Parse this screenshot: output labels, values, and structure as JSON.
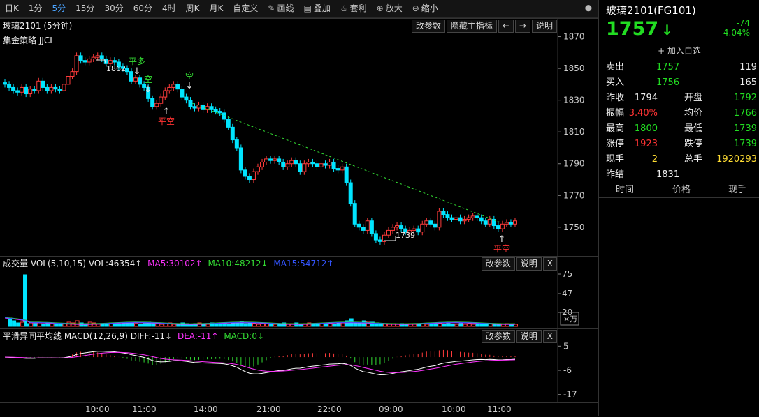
{
  "toolbar": {
    "items": [
      {
        "label": "日K"
      },
      {
        "label": "1分"
      },
      {
        "label": "5分"
      },
      {
        "label": "15分"
      },
      {
        "label": "30分"
      },
      {
        "label": "60分"
      },
      {
        "label": "4时"
      },
      {
        "label": "周K"
      },
      {
        "label": "月K"
      },
      {
        "label": "自定义"
      }
    ],
    "tools": [
      {
        "label": "画线",
        "icon": "pencil-icon"
      },
      {
        "label": "叠加",
        "icon": "overlay-icon"
      },
      {
        "label": "套利",
        "icon": "money-bag-icon"
      },
      {
        "label": "放大",
        "icon": "zoom-in-icon"
      },
      {
        "label": "缩小",
        "icon": "zoom-out-icon"
      }
    ]
  },
  "main": {
    "title": "玻璃2101 (5分钟)",
    "strategy": "集金策略 JJCL",
    "buttons": {
      "params": "改参数",
      "hide": "隐藏主指标",
      "left": "←",
      "right": "→",
      "help": "说明"
    },
    "y_ticks": [
      "1870",
      "1850",
      "1830",
      "1810",
      "1790",
      "1770",
      "1750"
    ],
    "hi_label": "1862",
    "lo_label": "1739",
    "signals": {
      "ping_duo": "平多",
      "kong1": "空",
      "kong2": "空",
      "ping_kong1": "平空",
      "ping_kong2": "平空"
    }
  },
  "volume": {
    "label": "成交量 VOL(5,10,15) VOL:46354↑",
    "ma5": "MA5:30102↑",
    "ma10": "MA10:48212↓",
    "ma15": "MA15:54712↑",
    "buttons": {
      "params": "改参数",
      "help": "说明",
      "close": "X"
    },
    "y_ticks": [
      "75",
      "47",
      "20"
    ],
    "unit": "×万"
  },
  "macd": {
    "label": "平滑异同平均线 MACD(12,26,9) DIFF:-11↓",
    "dea": "DEA:-11↑",
    "macd": "MACD:0↓",
    "buttons": {
      "params": "改参数",
      "help": "说明",
      "close": "X"
    },
    "y_ticks": [
      "5",
      "-6",
      "-17"
    ]
  },
  "x_ticks": [
    "10:00",
    "11:00",
    "14:00",
    "21:00",
    "22:00",
    "09:00",
    "10:00",
    "11:00"
  ],
  "quote": {
    "title": "玻璃2101(FG101)",
    "price": "1757",
    "arrow": "↓",
    "change": "-74",
    "change_pct": "-4.04%",
    "add": "+ 加入自选",
    "sell": {
      "label": "卖出",
      "price": "1757",
      "vol": "119"
    },
    "buy": {
      "label": "买入",
      "price": "1756",
      "vol": "165"
    },
    "rows": [
      {
        "l1": "昨收",
        "v1": "1794",
        "l2": "开盘",
        "v2": "1792"
      },
      {
        "l1": "振幅",
        "v1": "3.40%",
        "l2": "均价",
        "v2": "1766"
      },
      {
        "l1": "最高",
        "v1": "1800",
        "l2": "最低",
        "v2": "1739"
      },
      {
        "l1": "涨停",
        "v1": "1923",
        "l2": "跌停",
        "v2": "1739"
      },
      {
        "l1": "现手",
        "v1": "2",
        "l2": "总手",
        "v2": "1920293"
      }
    ],
    "prev_settle": {
      "label": "昨结",
      "value": "1831"
    },
    "table_head": {
      "time": "时间",
      "price": "价格",
      "vol": "现手"
    }
  },
  "chart_data": {
    "type": "candlestick",
    "ylim": [
      1735,
      1872
    ],
    "closes": [
      1840,
      1838,
      1836,
      1835,
      1838,
      1834,
      1837,
      1836,
      1842,
      1838,
      1836,
      1838,
      1837,
      1836,
      1840,
      1845,
      1848,
      1858,
      1855,
      1854,
      1856,
      1857,
      1858,
      1856,
      1853,
      1855,
      1854,
      1851,
      1850,
      1848,
      1842,
      1844,
      1840,
      1838,
      1831,
      1826,
      1828,
      1832,
      1836,
      1838,
      1840,
      1837,
      1832,
      1830,
      1826,
      1825,
      1827,
      1824,
      1826,
      1824,
      1823,
      1822,
      1818,
      1813,
      1805,
      1800,
      1786,
      1782,
      1780,
      1785,
      1788,
      1791,
      1793,
      1792,
      1793,
      1791,
      1788,
      1790,
      1792,
      1790,
      1785,
      1790,
      1791,
      1790,
      1788,
      1790,
      1789,
      1791,
      1787,
      1786,
      1788,
      1778,
      1765,
      1752,
      1750,
      1748,
      1754,
      1746,
      1742,
      1741,
      1745,
      1748,
      1750,
      1751,
      1749,
      1747,
      1748,
      1749,
      1747,
      1752,
      1754,
      1752,
      1750,
      1760,
      1758,
      1756,
      1755,
      1756,
      1754,
      1755,
      1756,
      1757,
      1756,
      1754,
      1752,
      1755,
      1751,
      1749,
      1752,
      1753,
      1752,
      1754
    ],
    "trend_line": [
      [
        45,
        1828
      ],
      [
        118,
        1753
      ]
    ],
    "volume": [
      74,
      12,
      8,
      5,
      6,
      4,
      5,
      4,
      6,
      3,
      4,
      5,
      4,
      3,
      4,
      6,
      5,
      8,
      5,
      4,
      6,
      5,
      4,
      4,
      3,
      5,
      4,
      3,
      4,
      5,
      5,
      4,
      3,
      4,
      6,
      4,
      5,
      3,
      4,
      5,
      3,
      4,
      5,
      4,
      3,
      4,
      5,
      4,
      3,
      5,
      4,
      3,
      4,
      3,
      5,
      6,
      7,
      4,
      5,
      4,
      3,
      4,
      5,
      4,
      3,
      4,
      5,
      3,
      4,
      5,
      3,
      4,
      5,
      4,
      3,
      4,
      5,
      4,
      3,
      4,
      5,
      8,
      11,
      6,
      5,
      8,
      7,
      6,
      5,
      4,
      4,
      3,
      4,
      3,
      4,
      3,
      4,
      3,
      3,
      4,
      3,
      4,
      3,
      4,
      3,
      4,
      3,
      3,
      4,
      3,
      4,
      3,
      4,
      3,
      3,
      4,
      3,
      4,
      3,
      4,
      3,
      3
    ],
    "macd_ylim": [
      -19,
      7
    ]
  }
}
